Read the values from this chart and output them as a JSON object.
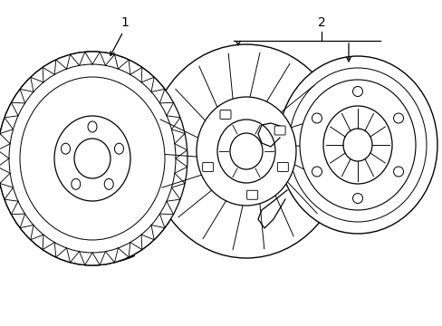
{
  "bg_color": "#ffffff",
  "line_color": "#000000",
  "lw": 0.9,
  "figsize": [
    4.89,
    3.6
  ],
  "dpi": 100,
  "label1": "1",
  "label2": "2",
  "xlim": [
    0,
    489
  ],
  "ylim": [
    0,
    360
  ]
}
